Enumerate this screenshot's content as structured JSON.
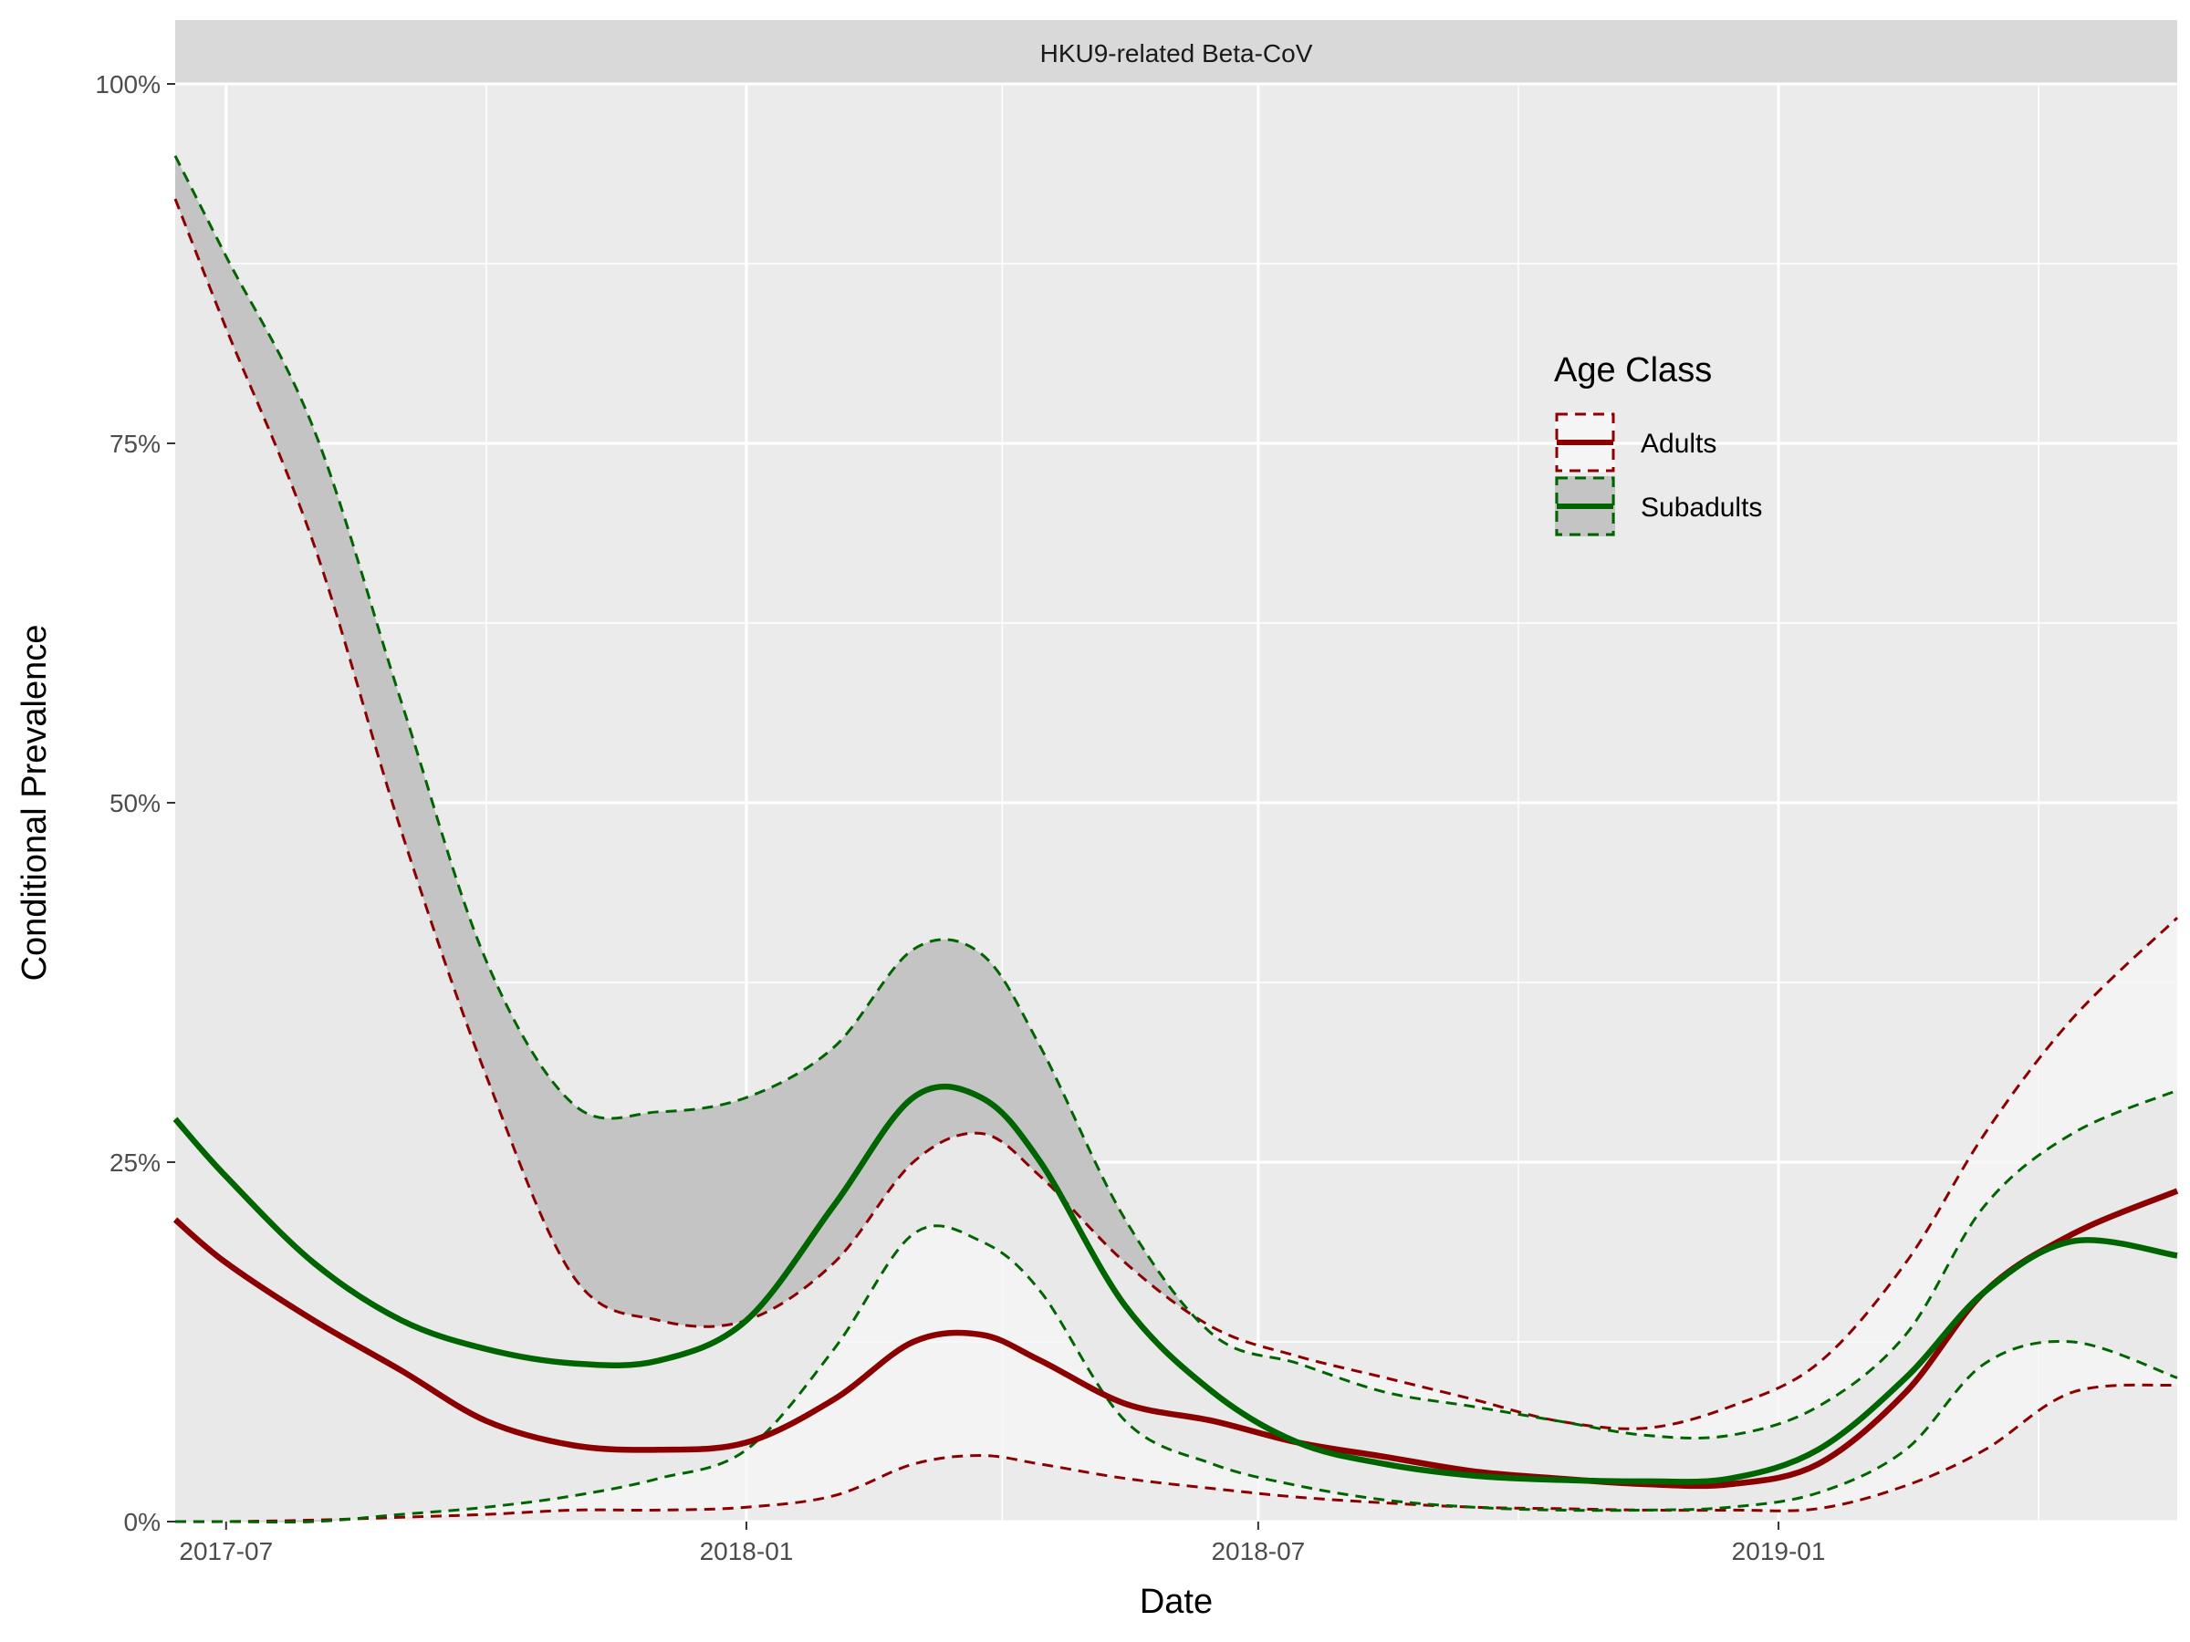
{
  "chart_data": {
    "type": "line",
    "panel_title": "HKU9-related Beta-CoV",
    "xlabel": "Date",
    "ylabel": "Conditional Prevalence",
    "x_tick_labels": [
      "2017-07",
      "2018-01",
      "2018-07",
      "2019-01"
    ],
    "x_tick_dates": [
      "2017-07-01",
      "2018-01-01",
      "2018-07-01",
      "2019-01-01"
    ],
    "y_tick_labels": [
      "0%",
      "25%",
      "50%",
      "75%",
      "100%"
    ],
    "y_tick_values": [
      0,
      25,
      50,
      75,
      100
    ],
    "ylim": [
      0,
      100
    ],
    "x_range": [
      "2017-06-13",
      "2019-05-22"
    ],
    "grid": true,
    "legend": {
      "title": "Age Class",
      "position": "top-right",
      "entries": [
        "Adults",
        "Subadults"
      ]
    },
    "colors": {
      "adults": "#8b0000",
      "subadults": "#006400",
      "panel_bg": "#ebebeb",
      "strip_bg": "#d9d9d9",
      "ribbon_subadults": "#c4c4c4",
      "ribbon_adults": "#f5f5f5"
    },
    "x": [
      "2017-06-13",
      "2017-07-01",
      "2017-08-01",
      "2017-09-01",
      "2017-10-01",
      "2017-11-01",
      "2017-12-01",
      "2018-01-01",
      "2018-02-01",
      "2018-03-01",
      "2018-03-25",
      "2018-04-15",
      "2018-05-15",
      "2018-06-15",
      "2018-07-15",
      "2018-08-15",
      "2018-09-15",
      "2018-10-15",
      "2018-11-15",
      "2018-12-15",
      "2019-01-15",
      "2019-02-15",
      "2019-03-15",
      "2019-04-15",
      "2019-05-22"
    ],
    "series": [
      {
        "name": "Adults",
        "estimate": [
          21,
          18,
          14,
          10.5,
          7,
          5.3,
          5,
          5.5,
          8.5,
          12.5,
          13,
          11.2,
          8.2,
          7,
          5.5,
          4.5,
          3.5,
          3,
          2.6,
          2.6,
          4,
          9,
          16,
          20,
          23
        ],
        "upper": [
          92,
          83,
          68,
          48,
          31,
          17,
          14,
          14,
          18,
          25,
          27,
          24,
          18,
          13.5,
          11.5,
          10,
          8.5,
          7,
          6.5,
          8,
          11,
          18,
          27,
          35,
          42
        ],
        "lower": [
          0,
          0,
          0.1,
          0.3,
          0.5,
          0.8,
          0.8,
          1,
          1.8,
          4,
          4.6,
          4,
          3,
          2.3,
          1.7,
          1.3,
          1,
          0.9,
          0.8,
          0.8,
          0.9,
          2.5,
          5,
          9,
          9.5
        ]
      },
      {
        "name": "Subadults",
        "estimate": [
          28,
          24,
          18,
          14,
          12,
          11,
          11.2,
          14,
          22,
          29.5,
          29.5,
          25,
          15,
          9,
          5.5,
          4,
          3.2,
          2.9,
          2.8,
          3,
          5,
          10,
          16,
          19.5,
          18.5
        ],
        "upper": [
          95,
          88,
          76,
          57,
          39,
          29,
          28.5,
          29.5,
          33,
          39.8,
          39.5,
          33,
          21,
          13,
          11,
          9,
          8,
          7,
          6,
          6,
          8,
          13,
          22,
          27,
          30
        ],
        "lower": [
          0,
          0,
          0,
          0.5,
          1,
          1.8,
          3,
          5,
          12,
          20,
          19.5,
          16,
          7,
          4,
          2.5,
          1.5,
          1,
          0.8,
          0.8,
          1,
          2,
          5,
          11,
          12.5,
          10
        ]
      }
    ]
  }
}
